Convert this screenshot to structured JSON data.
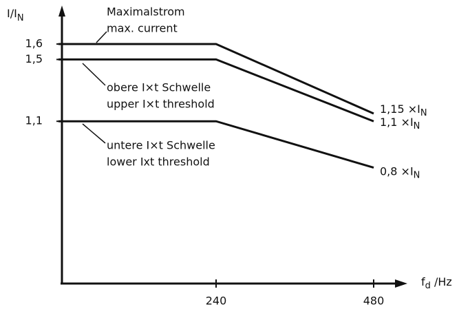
{
  "chart_data": {
    "type": "line",
    "y_label": {
      "main": "I/I",
      "sub": "N"
    },
    "x_label": {
      "main": "f",
      "sub": "d",
      "rest": " /Hz"
    },
    "x": [
      0,
      240,
      480
    ],
    "series": [
      {
        "name": "Maximalstrom",
        "name_2": "max. current",
        "color": "#111111",
        "values": [
          1.6,
          1.6,
          1.15
        ],
        "end_label": {
          "main": "1,15 ×I",
          "sub": "N"
        }
      },
      {
        "name": "obere I×t Schwelle",
        "name_2": "upper I×t threshold",
        "color": "#111111",
        "values": [
          1.5,
          1.5,
          1.1
        ],
        "end_label": {
          "main": "1,1  ×I",
          "sub": "N"
        }
      },
      {
        "name": "untere I×t Schwelle",
        "name_2": "lower  Ixt threshold",
        "color": "#111111",
        "values": [
          1.1,
          1.1,
          0.8
        ],
        "end_label": {
          "main": "0,8 ×I",
          "sub": "N"
        }
      }
    ],
    "xlim": [
      0,
      480
    ],
    "xticks": [
      240,
      480
    ],
    "ylim": [
      0.05,
      1.7
    ],
    "yticks": [
      {
        "value": 1.6,
        "label": "1,6"
      },
      {
        "value": 1.5,
        "label": "1,5"
      },
      {
        "value": 1.1,
        "label": "1,1"
      }
    ],
    "grid": false
  }
}
